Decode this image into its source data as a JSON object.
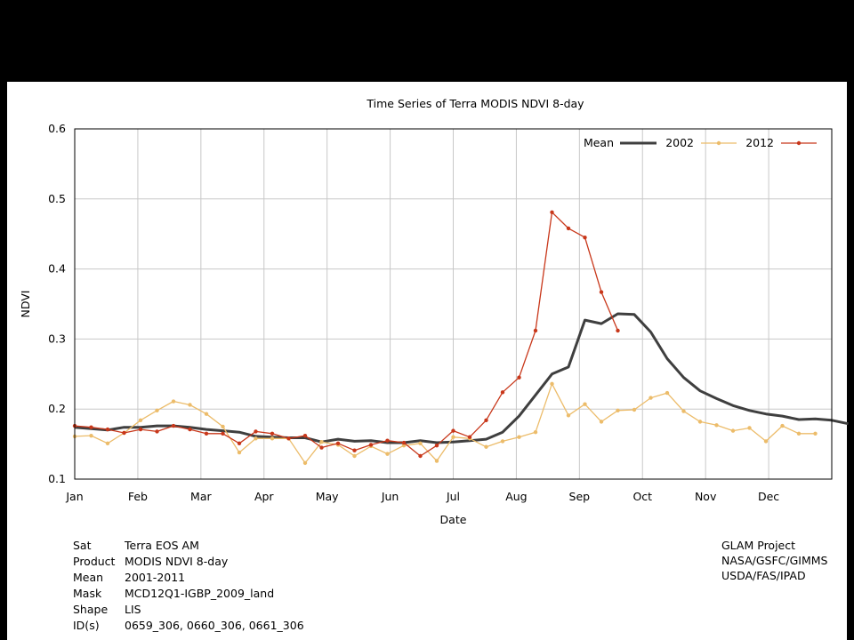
{
  "chart_data": {
    "type": "line",
    "title": "Time Series of Terra MODIS NDVI 8-day",
    "xlabel": "Date",
    "ylabel": "NDVI",
    "ylim": [
      0.1,
      0.6
    ],
    "yticks": [
      "0.1",
      "0.2",
      "0.3",
      "0.4",
      "0.5",
      "0.6"
    ],
    "months": [
      "Jan",
      "Feb",
      "Mar",
      "Apr",
      "May",
      "Jun",
      "Jul",
      "Aug",
      "Sep",
      "Oct",
      "Nov",
      "Dec"
    ],
    "x_unit": "8-day composite index (0 = Jan 1)",
    "grid": true,
    "legend_position": "top-right",
    "series": [
      {
        "name": "Mean",
        "color": "#3f3f3f",
        "markers": false,
        "values": [
          0.174,
          0.172,
          0.17,
          0.174,
          0.174,
          0.176,
          0.176,
          0.174,
          0.171,
          0.169,
          0.167,
          0.161,
          0.16,
          0.159,
          0.159,
          0.153,
          0.157,
          0.154,
          0.155,
          0.152,
          0.152,
          0.155,
          0.152,
          0.153,
          0.155,
          0.157,
          0.167,
          0.19,
          0.22,
          0.25,
          0.26,
          0.327,
          0.322,
          0.336,
          0.335,
          0.31,
          0.272,
          0.245,
          0.226,
          0.215,
          0.205,
          0.198,
          0.193,
          0.19,
          0.185,
          0.186,
          0.184,
          0.179
        ]
      },
      {
        "name": "2002",
        "color": "#ecbc6a",
        "markers": true,
        "values": [
          0.161,
          0.162,
          0.151,
          0.166,
          0.184,
          0.198,
          0.211,
          0.206,
          0.193,
          0.175,
          0.138,
          0.158,
          0.158,
          0.158,
          0.123,
          0.153,
          0.149,
          0.133,
          0.147,
          0.136,
          0.148,
          0.151,
          0.126,
          0.16,
          0.158,
          0.146,
          0.154,
          0.16,
          0.167,
          0.236,
          0.191,
          0.207,
          0.182,
          0.198,
          0.199,
          0.216,
          0.223,
          0.197,
          0.182,
          0.177,
          0.169,
          0.173,
          0.154,
          0.176,
          0.165,
          0.165
        ]
      },
      {
        "name": "2012",
        "color": "#c8371a",
        "markers": true,
        "values": [
          0.176,
          0.174,
          0.171,
          0.166,
          0.171,
          0.168,
          0.176,
          0.171,
          0.165,
          0.165,
          0.151,
          0.168,
          0.165,
          0.158,
          0.162,
          0.145,
          0.151,
          0.141,
          0.149,
          0.155,
          0.152,
          0.133,
          0.148,
          0.169,
          0.16,
          0.184,
          0.224,
          0.245,
          0.312,
          0.481,
          0.458,
          0.445,
          0.367,
          0.312
        ]
      }
    ]
  },
  "metadata": {
    "rows": [
      {
        "key": "Sat",
        "value": "Terra EOS AM"
      },
      {
        "key": "Product",
        "value": "MODIS NDVI 8-day"
      },
      {
        "key": "Mean",
        "value": "2001-2011"
      },
      {
        "key": "Mask",
        "value": "MCD12Q1-IGBP_2009_land"
      },
      {
        "key": "Shape",
        "value": "LIS"
      },
      {
        "key": "ID(s)",
        "value": "0659_306, 0660_306, 0661_306"
      }
    ]
  },
  "credits": [
    "GLAM Project",
    "NASA/GSFC/GIMMS",
    "USDA/FAS/IPAD"
  ]
}
